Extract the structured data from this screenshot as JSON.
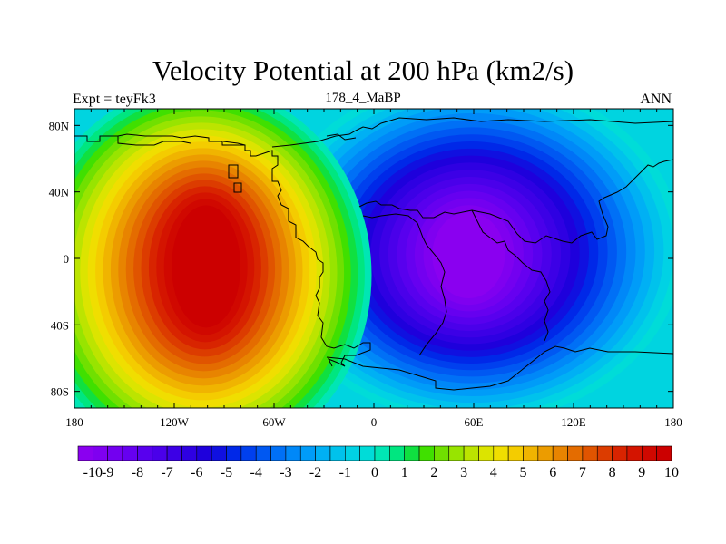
{
  "title": "Velocity Potential at 200 hPa (km2/s)",
  "subtitle_left": "Expt = teyFk3",
  "subtitle_center": "178_4_MaBP",
  "subtitle_right": "ANN",
  "axes": {
    "x_ticks": [
      {
        "value": -180,
        "label": "180"
      },
      {
        "value": -120,
        "label": "120W"
      },
      {
        "value": -60,
        "label": "60W"
      },
      {
        "value": 0,
        "label": "0"
      },
      {
        "value": 60,
        "label": "60E"
      },
      {
        "value": 120,
        "label": "120E"
      },
      {
        "value": 180,
        "label": "180"
      }
    ],
    "y_ticks": [
      {
        "value": 80,
        "label": "80N"
      },
      {
        "value": 40,
        "label": "40N"
      },
      {
        "value": 0,
        "label": "0"
      },
      {
        "value": -40,
        "label": "40S"
      },
      {
        "value": -80,
        "label": "80S"
      }
    ],
    "lon_range": [
      -180,
      180
    ],
    "lat_range": [
      -90,
      90
    ]
  },
  "field": {
    "type": "filled-contour",
    "units": "km2/s",
    "centers": [
      {
        "name": "positive-center",
        "lon": -105,
        "lat": -10,
        "value": 10
      },
      {
        "name": "negative-center",
        "lon": 60,
        "lat": 5,
        "value": -10
      }
    ]
  },
  "colorbar": {
    "levels": [
      -10,
      -9.5,
      -9,
      -8.5,
      -8,
      -7.5,
      -7,
      -6.5,
      -6,
      -5.5,
      -5,
      -4.5,
      -4,
      -3.5,
      -3,
      -2.5,
      -2,
      -1.5,
      -1,
      -0.5,
      0,
      0.5,
      1,
      1.5,
      2,
      2.5,
      3,
      3.5,
      4,
      4.5,
      5,
      5.5,
      6,
      6.5,
      7,
      7.5,
      8,
      8.5,
      9,
      9.5,
      10
    ],
    "labels": [
      "-10",
      "-9",
      "-8",
      "-7",
      "-6",
      "-5",
      "-4",
      "-3",
      "-2",
      "-1",
      "0",
      "1",
      "2",
      "3",
      "4",
      "5",
      "6",
      "7",
      "8",
      "9",
      "10"
    ],
    "colors": [
      "#8a00f0",
      "#7f00f0",
      "#7300f0",
      "#6600f0",
      "#5800ee",
      "#4a00ea",
      "#3c00e6",
      "#2e00e2",
      "#1e00dc",
      "#1010e0",
      "#0028e8",
      "#0040ee",
      "#0058f2",
      "#0070f6",
      "#0088f8",
      "#009cf8",
      "#00b0f4",
      "#00c2ec",
      "#00d2e4",
      "#00dcd8",
      "#00e6b4",
      "#00e680",
      "#10e040",
      "#40e000",
      "#70e000",
      "#98e400",
      "#bce400",
      "#dce400",
      "#f0de00",
      "#f4cc00",
      "#f0b400",
      "#ec9c00",
      "#e88400",
      "#e46c00",
      "#e05400",
      "#dc3c00",
      "#d82400",
      "#d41400",
      "#d00800",
      "#cc0000"
    ]
  }
}
